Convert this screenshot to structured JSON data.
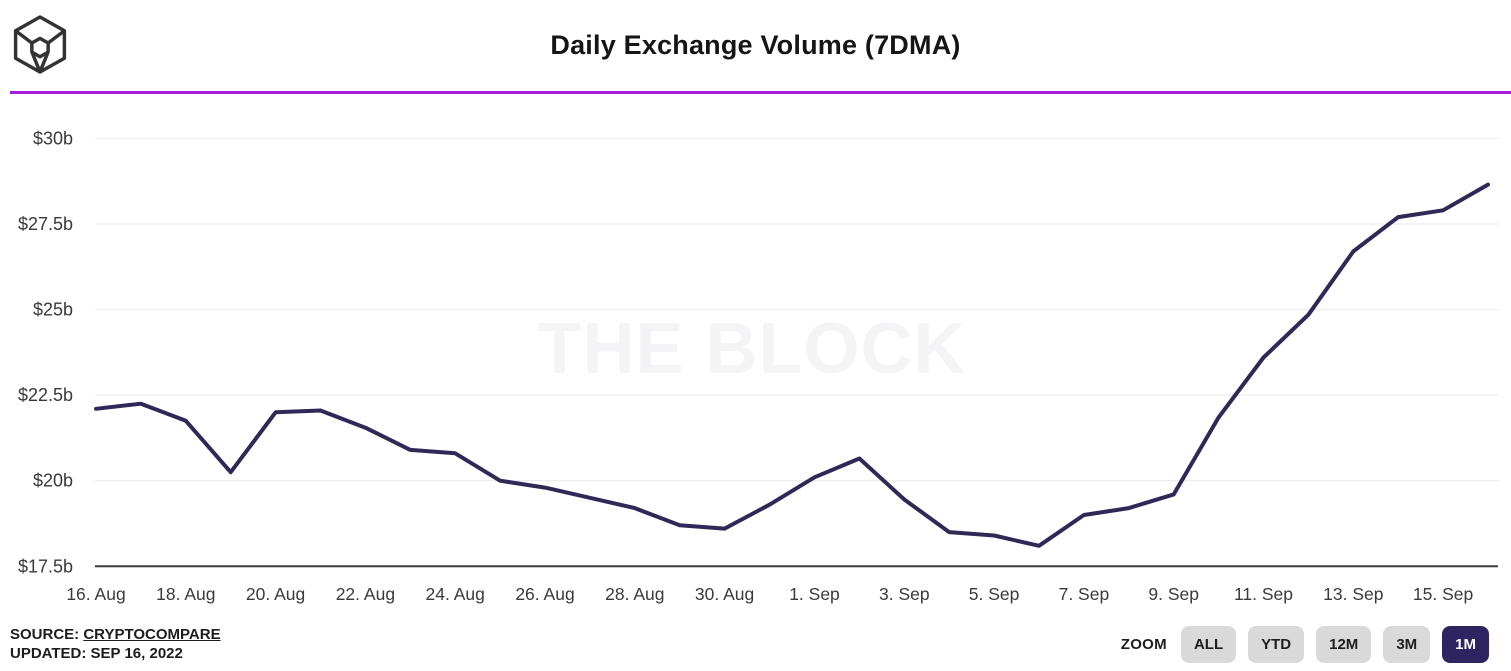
{
  "header": {
    "title": "Daily Exchange Volume (7DMA)",
    "logo_name": "the-block-cube-logo",
    "divider_color": "#a81bdb"
  },
  "chart_data": {
    "type": "line",
    "title": "Daily Exchange Volume (7DMA)",
    "watermark": "THE BLOCK",
    "unit": "USD billions",
    "categories": [
      "16. Aug",
      "17. Aug",
      "18. Aug",
      "19. Aug",
      "20. Aug",
      "21. Aug",
      "22. Aug",
      "23. Aug",
      "24. Aug",
      "25. Aug",
      "26. Aug",
      "27. Aug",
      "28. Aug",
      "29. Aug",
      "30. Aug",
      "31. Aug",
      "1. Sep",
      "2. Sep",
      "3. Sep",
      "4. Sep",
      "5. Sep",
      "6. Sep",
      "7. Sep",
      "8. Sep",
      "9. Sep",
      "10. Sep",
      "11. Sep",
      "12. Sep",
      "13. Sep",
      "14. Sep",
      "15. Sep",
      "16. Sep"
    ],
    "values": [
      22.1,
      22.25,
      21.75,
      20.25,
      22.0,
      22.05,
      21.55,
      20.9,
      20.8,
      20.0,
      19.8,
      19.5,
      19.2,
      18.7,
      18.6,
      19.3,
      20.1,
      20.65,
      19.45,
      18.5,
      18.4,
      18.1,
      19.0,
      19.2,
      19.6,
      21.85,
      23.6,
      24.85,
      26.7,
      27.7,
      27.9,
      28.65
    ],
    "series_name": "Daily exchange volume (7-day moving average)",
    "ylim": [
      17.5,
      30
    ],
    "yticks": [
      {
        "value": 30,
        "label": "$30b"
      },
      {
        "value": 27.5,
        "label": "$27.5b"
      },
      {
        "value": 25,
        "label": "$25b"
      },
      {
        "value": 22.5,
        "label": "$22.5b"
      },
      {
        "value": 20,
        "label": "$20b"
      },
      {
        "value": 17.5,
        "label": "$17.5b"
      }
    ],
    "xtick_every": 2,
    "grid": "horizontal",
    "legend": "none",
    "line_color": "#2e2957",
    "grid_color": "#eeeef1",
    "axis_color": "#3d3d3d",
    "label_color": "#3a3a3a",
    "watermark_color": "#f4f4f7"
  },
  "footer": {
    "source_label": "SOURCE:",
    "source_value": "CRYPTOCOMPARE",
    "updated": "UPDATED: SEP 16, 2022",
    "zoom": {
      "label": "ZOOM",
      "buttons": [
        {
          "label": "ALL",
          "selected": false
        },
        {
          "label": "YTD",
          "selected": false
        },
        {
          "label": "12M",
          "selected": false
        },
        {
          "label": "3M",
          "selected": false
        },
        {
          "label": "1M",
          "selected": true
        }
      ],
      "button_bg": "#d9d9d9",
      "selected_bg": "#2e2461",
      "selected_text": "#ffffff"
    }
  }
}
